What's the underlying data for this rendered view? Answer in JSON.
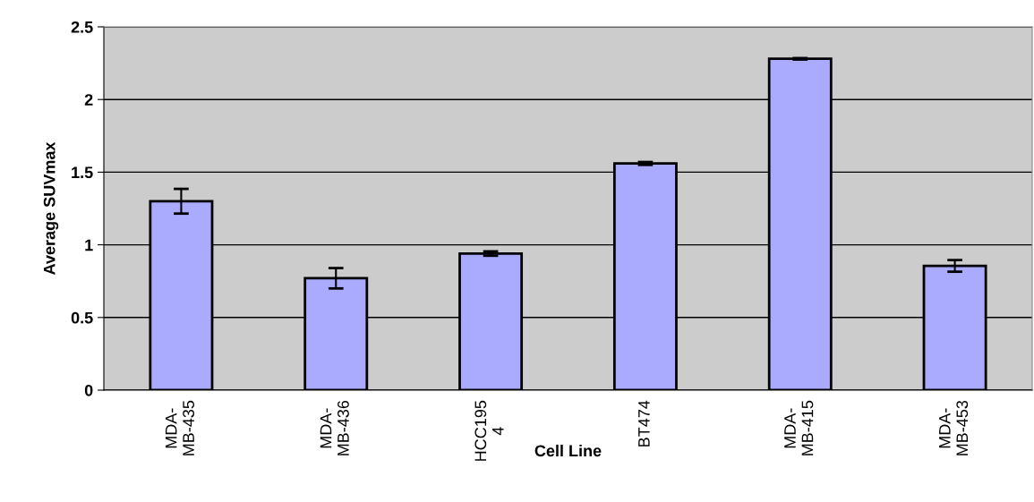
{
  "chart_data": {
    "type": "bar",
    "xlabel": "Cell Line",
    "ylabel": "Average SUVmax",
    "categories": [
      "MDA-\nMB-435",
      "MDA-\nMB-436",
      "HCC195\n4",
      "BT474",
      "MDA-\nMB-415",
      "MDA-\nMB-453"
    ],
    "values": [
      1.3,
      0.77,
      0.94,
      1.56,
      2.28,
      0.855
    ],
    "errors": [
      0.085,
      0.07,
      0.015,
      0.01,
      0.005,
      0.04
    ],
    "color": "#aaaaff",
    "ylim": [
      0,
      2.5
    ],
    "yticks": [
      0,
      0.5,
      1,
      1.5,
      2,
      2.5
    ],
    "grid": "y"
  }
}
